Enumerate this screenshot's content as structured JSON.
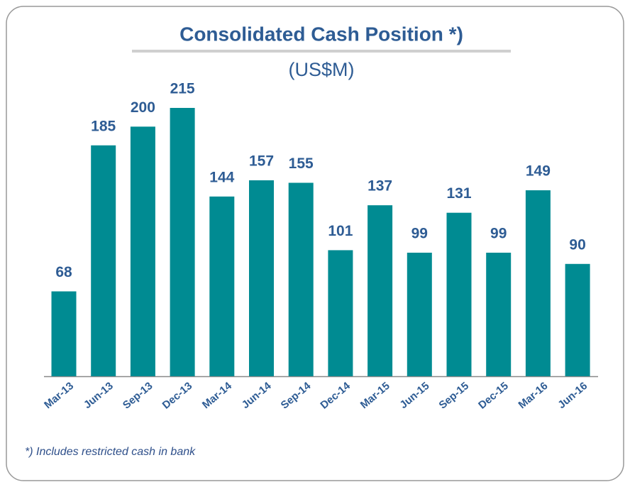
{
  "chart_data": {
    "type": "bar",
    "title": "Consolidated Cash Position *)",
    "subtitle": "(US$M)",
    "categories": [
      "Mar-13",
      "Jun-13",
      "Sep-13",
      "Dec-13",
      "Mar-14",
      "Jun-14",
      "Sep-14",
      "Dec-14",
      "Mar-15",
      "Jun-15",
      "Sep-15",
      "Dec-15",
      "Mar-16",
      "Jun-16"
    ],
    "values": [
      68,
      185,
      200,
      215,
      144,
      157,
      155,
      101,
      137,
      99,
      131,
      99,
      149,
      90
    ],
    "color": "#008b92",
    "footnote": "*) Includes restricted cash in bank"
  }
}
